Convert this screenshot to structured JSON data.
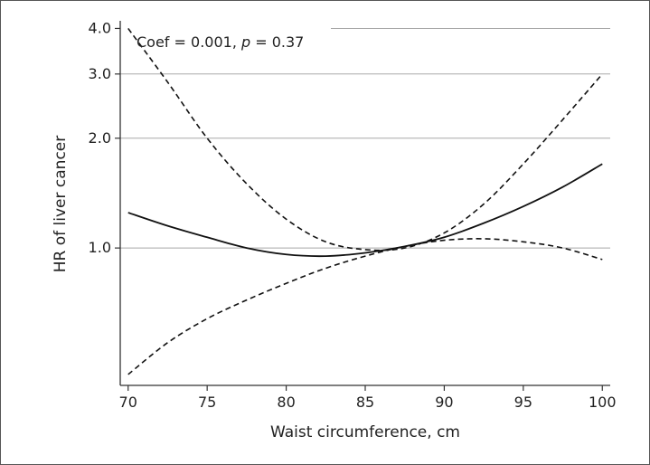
{
  "chart_data": {
    "type": "line",
    "title": "",
    "xlabel": "Waist circumference, cm",
    "ylabel": "HR of liver cancer",
    "xlim": [
      69.5,
      100.5
    ],
    "ylim": [
      0.42,
      4.15
    ],
    "y_scale": "log",
    "grid": "horizontal",
    "x_ticks": [
      70,
      75,
      80,
      85,
      90,
      95,
      100
    ],
    "x_tick_labels": [
      "70",
      "75",
      "80",
      "85",
      "90",
      "95",
      "100"
    ],
    "y_ticks": [
      1.0,
      2.0,
      3.0,
      4.0
    ],
    "y_tick_labels": [
      "1.0",
      "2.0",
      "3.0",
      "4.0"
    ],
    "annotation": {
      "text": "Coef = 0.001, ",
      "p_symbol": "p",
      "p_text": " = 0.37"
    },
    "series": [
      {
        "role": "estimate",
        "style": "solid",
        "x": [
          70,
          72.5,
          75,
          77.5,
          80,
          82.5,
          85,
          87.5,
          90,
          92.5,
          95,
          97.5,
          100
        ],
        "y": [
          1.25,
          1.15,
          1.07,
          1.0,
          0.96,
          0.95,
          0.97,
          1.01,
          1.07,
          1.17,
          1.3,
          1.47,
          1.7
        ]
      },
      {
        "role": "upper-ci",
        "style": "dashed",
        "x": [
          70,
          72.5,
          75,
          77.5,
          80,
          82.5,
          85,
          87.5,
          90,
          92.5,
          95,
          97.5,
          100
        ],
        "y": [
          4.0,
          2.85,
          2.0,
          1.5,
          1.2,
          1.04,
          0.99,
          1.0,
          1.1,
          1.32,
          1.7,
          2.25,
          3.0
        ]
      },
      {
        "role": "lower-ci",
        "style": "dashed",
        "x": [
          70,
          72.5,
          75,
          77.5,
          80,
          82.5,
          85,
          87.5,
          90,
          92.5,
          95,
          97.5,
          100
        ],
        "y": [
          0.45,
          0.55,
          0.64,
          0.72,
          0.8,
          0.88,
          0.95,
          1.01,
          1.05,
          1.06,
          1.04,
          1.0,
          0.93
        ]
      }
    ]
  },
  "colors": {
    "line": "#111111",
    "grid": "#a8a8a8",
    "axis": "#333333",
    "text": "#222222"
  }
}
